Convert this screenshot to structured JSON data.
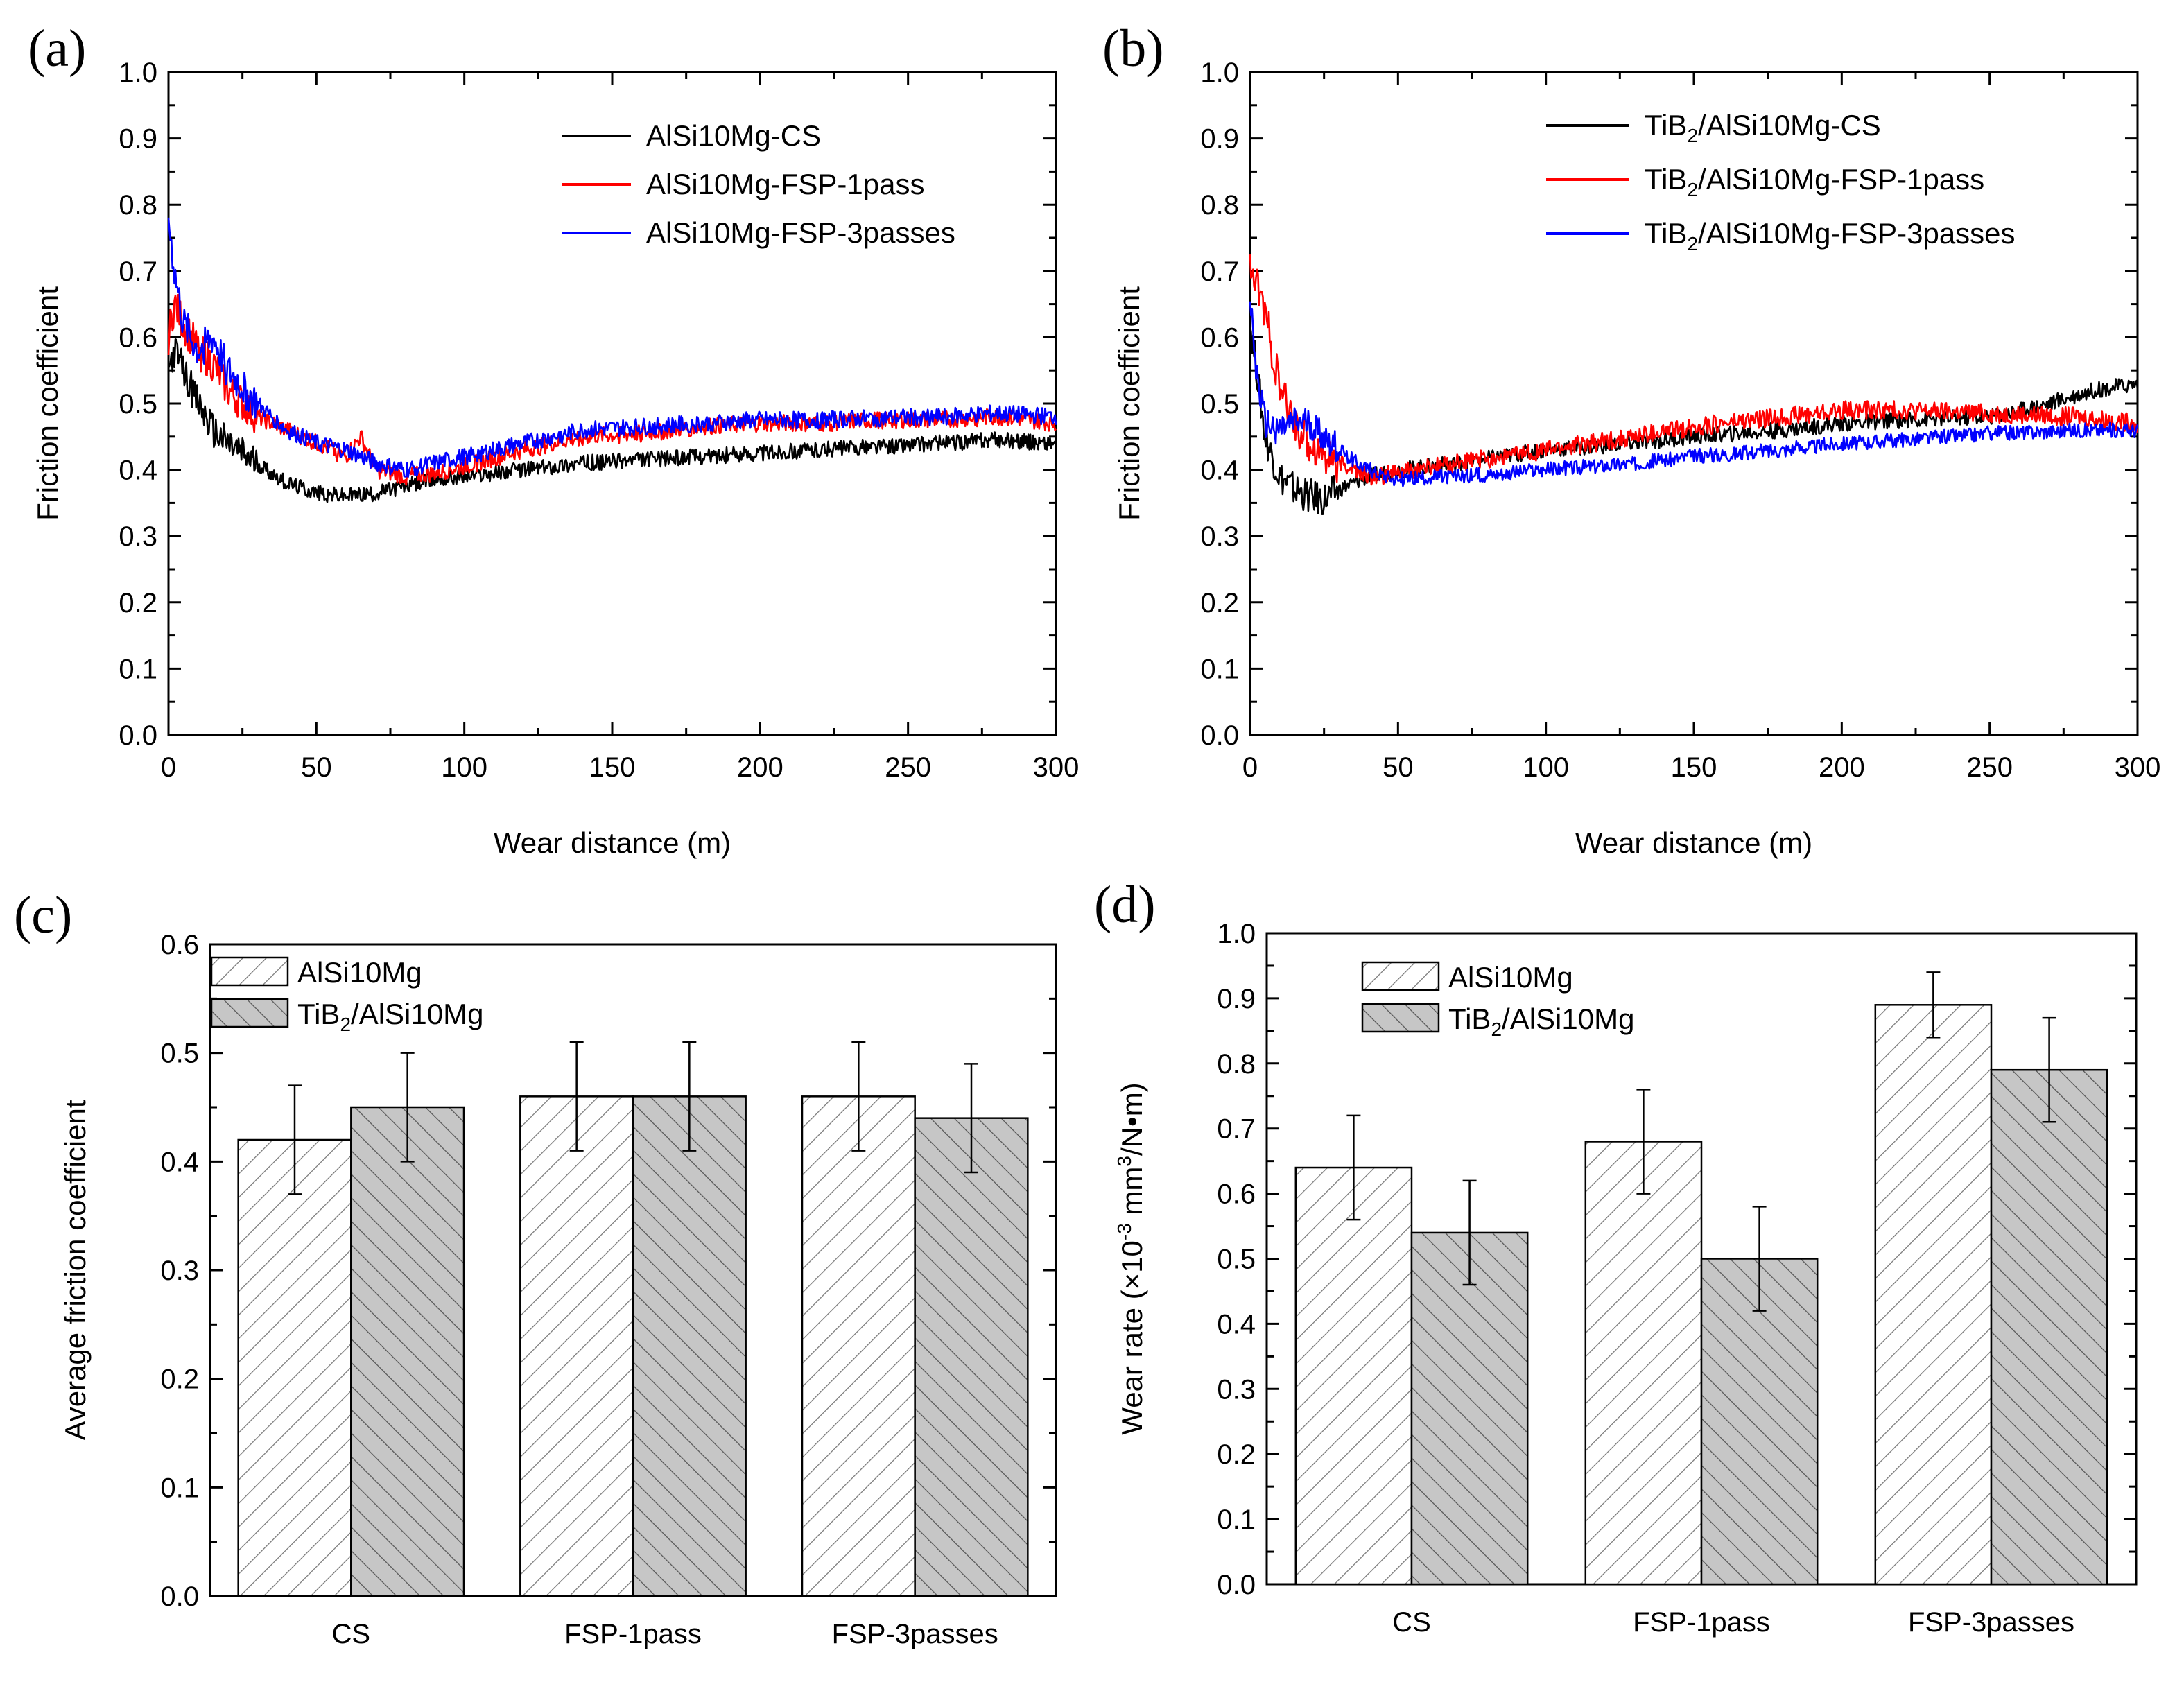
{
  "chart_data": [
    {
      "id": "a",
      "panel_label": "(a)",
      "type": "line",
      "xlabel": "Wear distance (m)",
      "ylabel": "Friction coefficient",
      "xlim": [
        0,
        300
      ],
      "ylim": [
        0,
        1.0
      ],
      "x_ticks": [
        "0",
        "50",
        "100",
        "150",
        "200",
        "250",
        "300"
      ],
      "y_ticks": [
        "0.0",
        "0.1",
        "0.2",
        "0.3",
        "0.4",
        "0.5",
        "0.6",
        "0.7",
        "0.8",
        "0.9",
        "1.0"
      ],
      "legend_position": "top-right",
      "series": [
        {
          "name": "AlSi10Mg-CS",
          "color": "#000000",
          "noise": 0.012,
          "x": [
            0,
            2,
            5,
            10,
            15,
            20,
            30,
            40,
            50,
            60,
            70,
            80,
            90,
            100,
            120,
            140,
            160,
            180,
            200,
            220,
            240,
            260,
            280,
            300
          ],
          "y": [
            0.55,
            0.58,
            0.55,
            0.5,
            0.46,
            0.44,
            0.41,
            0.38,
            0.365,
            0.36,
            0.365,
            0.375,
            0.385,
            0.39,
            0.4,
            0.41,
            0.415,
            0.42,
            0.425,
            0.43,
            0.435,
            0.44,
            0.445,
            0.44
          ]
        },
        {
          "name": "AlSi10Mg-FSP-1pass",
          "color": "#ff0000",
          "noise": 0.013,
          "x": [
            0,
            2,
            5,
            10,
            15,
            20,
            30,
            40,
            50,
            60,
            65,
            70,
            80,
            90,
            100,
            120,
            140,
            160,
            180,
            200,
            220,
            240,
            260,
            280,
            300
          ],
          "y": [
            0.6,
            0.65,
            0.62,
            0.58,
            0.56,
            0.52,
            0.48,
            0.46,
            0.44,
            0.42,
            0.45,
            0.4,
            0.39,
            0.395,
            0.405,
            0.43,
            0.45,
            0.455,
            0.465,
            0.47,
            0.47,
            0.475,
            0.475,
            0.48,
            0.47
          ]
        },
        {
          "name": "AlSi10Mg-FSP-3passes",
          "color": "#0000ff",
          "noise": 0.013,
          "x": [
            0,
            2,
            5,
            10,
            15,
            20,
            30,
            40,
            50,
            60,
            70,
            80,
            90,
            100,
            120,
            140,
            160,
            180,
            200,
            220,
            240,
            260,
            280,
            300
          ],
          "y": [
            0.78,
            0.7,
            0.62,
            0.58,
            0.6,
            0.55,
            0.5,
            0.46,
            0.44,
            0.43,
            0.41,
            0.4,
            0.41,
            0.42,
            0.44,
            0.46,
            0.465,
            0.47,
            0.475,
            0.475,
            0.478,
            0.48,
            0.485,
            0.48
          ]
        }
      ]
    },
    {
      "id": "b",
      "panel_label": "(b)",
      "type": "line",
      "xlabel": "Wear distance (m)",
      "ylabel": "Friction coefficient",
      "xlim": [
        0,
        300
      ],
      "ylim": [
        0,
        1.0
      ],
      "x_ticks": [
        "0",
        "50",
        "100",
        "150",
        "200",
        "250",
        "300"
      ],
      "y_ticks": [
        "0.0",
        "0.1",
        "0.2",
        "0.3",
        "0.4",
        "0.5",
        "0.6",
        "0.7",
        "0.8",
        "0.9",
        "1.0"
      ],
      "legend_position": "top-right",
      "series": [
        {
          "name": "TiB",
          "name_sub": "2",
          "name_rest": "/AlSi10Mg-CS",
          "color": "#000000",
          "noise": 0.012,
          "x": [
            0,
            2,
            5,
            10,
            15,
            20,
            25,
            30,
            40,
            50,
            70,
            100,
            130,
            150,
            180,
            200,
            220,
            250,
            270,
            285,
            300
          ],
          "y": [
            0.62,
            0.56,
            0.45,
            0.39,
            0.37,
            0.36,
            0.355,
            0.37,
            0.39,
            0.4,
            0.41,
            0.43,
            0.44,
            0.45,
            0.46,
            0.47,
            0.475,
            0.48,
            0.5,
            0.52,
            0.53
          ]
        },
        {
          "name": "TiB",
          "name_sub": "2",
          "name_rest": "/AlSi10Mg-FSP-1pass",
          "color": "#ff0000",
          "noise": 0.014,
          "x": [
            0,
            2,
            5,
            10,
            15,
            20,
            30,
            40,
            50,
            70,
            100,
            130,
            150,
            180,
            200,
            220,
            250,
            280,
            300
          ],
          "y": [
            0.7,
            0.68,
            0.64,
            0.52,
            0.47,
            0.44,
            0.41,
            0.39,
            0.395,
            0.41,
            0.43,
            0.45,
            0.465,
            0.48,
            0.49,
            0.49,
            0.485,
            0.48,
            0.47
          ]
        },
        {
          "name": "TiB",
          "name_sub": "2",
          "name_rest": "/AlSi10Mg-FSP-3passes",
          "color": "#0000ff",
          "noise": 0.011,
          "x": [
            0,
            2,
            5,
            10,
            15,
            20,
            30,
            40,
            50,
            70,
            100,
            130,
            150,
            180,
            200,
            220,
            250,
            280,
            300
          ],
          "y": [
            0.66,
            0.55,
            0.47,
            0.46,
            0.47,
            0.47,
            0.43,
            0.4,
            0.385,
            0.39,
            0.4,
            0.41,
            0.42,
            0.43,
            0.44,
            0.445,
            0.455,
            0.46,
            0.46
          ]
        }
      ]
    },
    {
      "id": "c",
      "panel_label": "(c)",
      "type": "bar",
      "ylabel": "Average friction coefficient",
      "categories": [
        "CS",
        "FSP-1pass",
        "FSP-3passes"
      ],
      "ylim": [
        0,
        0.6
      ],
      "y_ticks": [
        "0.0",
        "0.1",
        "0.2",
        "0.3",
        "0.4",
        "0.5",
        "0.6"
      ],
      "legend_position": "top-left",
      "series": [
        {
          "name": "AlSi10Mg",
          "values": [
            0.42,
            0.46,
            0.46
          ],
          "errors": [
            0.05,
            0.05,
            0.05
          ],
          "fill": "#ffffff",
          "hatch": "#777777"
        },
        {
          "name": "TiB",
          "name_sub": "2",
          "name_rest": "/AlSi10Mg",
          "values": [
            0.45,
            0.46,
            0.44
          ],
          "errors": [
            0.05,
            0.05,
            0.05
          ],
          "fill": "#c6c6c6",
          "hatch": "#555555"
        }
      ]
    },
    {
      "id": "d",
      "panel_label": "(d)",
      "type": "bar",
      "ylabel_parts": [
        "Wear rate (×10",
        "-3",
        " mm",
        "3",
        "/N•m)"
      ],
      "categories": [
        "CS",
        "FSP-1pass",
        "FSP-3passes"
      ],
      "ylim": [
        0,
        1.0
      ],
      "y_ticks": [
        "0.0",
        "0.1",
        "0.2",
        "0.3",
        "0.4",
        "0.5",
        "0.6",
        "0.7",
        "0.8",
        "0.9",
        "1.0"
      ],
      "legend_position": "top-left",
      "series": [
        {
          "name": "AlSi10Mg",
          "values": [
            0.64,
            0.68,
            0.89
          ],
          "errors": [
            0.08,
            0.08,
            0.05
          ],
          "fill": "#ffffff",
          "hatch": "#777777"
        },
        {
          "name": "TiB",
          "name_sub": "2",
          "name_rest": "/AlSi10Mg",
          "values": [
            0.54,
            0.5,
            0.79
          ],
          "errors": [
            0.08,
            0.08,
            0.08
          ],
          "fill": "#c6c6c6",
          "hatch": "#555555"
        }
      ]
    }
  ]
}
